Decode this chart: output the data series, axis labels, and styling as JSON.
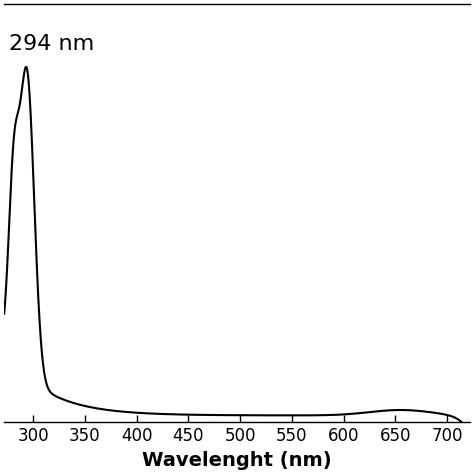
{
  "xlabel": "Wavelenght (nm)",
  "annotation": "294 nm",
  "x_min": 272,
  "x_max": 722,
  "x_ticks": [
    300,
    350,
    400,
    450,
    500,
    550,
    600,
    650,
    700
  ],
  "line_color": "#000000",
  "background_color": "#ffffff",
  "line_width": 1.5,
  "tick_fontsize": 12,
  "xlabel_fontsize": 14,
  "annotation_fontsize": 16
}
